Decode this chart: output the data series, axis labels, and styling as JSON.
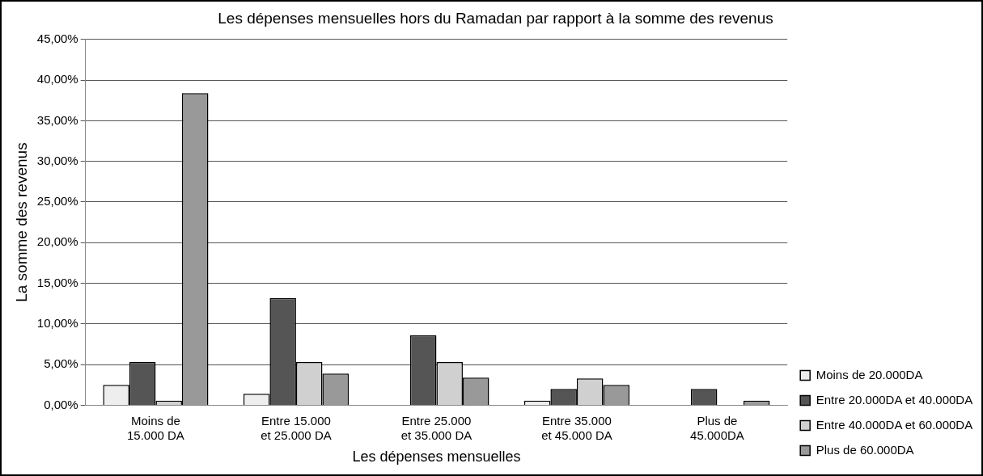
{
  "chart_data": {
    "type": "bar",
    "title": "Les dépenses mensuelles hors du Ramadan par rapport à la somme des revenus",
    "xlabel": "Les dépenses mensuelles",
    "ylabel": "La somme des revenus",
    "categories": [
      "Moins de 15.000 DA",
      "Entre 15.000 et 25.000 DA",
      "Entre 25.000 et 35.000 DA",
      "Entre 35.000 et 45.000 DA",
      "Plus de 45.000DA"
    ],
    "series": [
      {
        "name": "Moins de 20.000DA",
        "color": "#eeeeee",
        "values": [
          2.5,
          1.4,
          0,
          0.55,
          0
        ]
      },
      {
        "name": "Entre 20.000DA et 40.000DA",
        "color": "#555555",
        "values": [
          5.3,
          13.2,
          8.6,
          2.0,
          2.0
        ]
      },
      {
        "name": "Entre 40.000DA et 60.000DA",
        "color": "#d0d0d0",
        "values": [
          0.55,
          5.3,
          5.3,
          3.3,
          0
        ]
      },
      {
        "name": "Plus de 60.000DA",
        "color": "#999999",
        "values": [
          38.4,
          3.9,
          3.4,
          2.5,
          0.55
        ]
      }
    ],
    "ylim": [
      0,
      45
    ],
    "yticks": [
      {
        "value": 0,
        "label": "0,00%"
      },
      {
        "value": 5,
        "label": "5,00%"
      },
      {
        "value": 10,
        "label": "10,00%"
      },
      {
        "value": 15,
        "label": "15,00%"
      },
      {
        "value": 20,
        "label": "20,00%"
      },
      {
        "value": 25,
        "label": "25,00%"
      },
      {
        "value": 30,
        "label": "30,00%"
      },
      {
        "value": 35,
        "label": "35,00%"
      },
      {
        "value": 40,
        "label": "40,00%"
      },
      {
        "value": 45,
        "label": "45,00%"
      }
    ],
    "grid": "y",
    "legend": "bottom right"
  }
}
